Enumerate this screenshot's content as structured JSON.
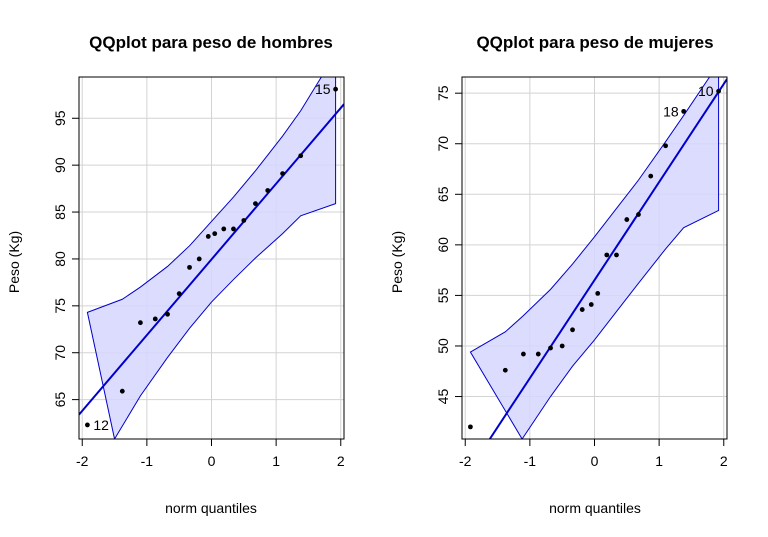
{
  "chart_data": [
    {
      "type": "scatter",
      "title": "QQplot para peso de hombres",
      "xlabel": "norm quantiles",
      "ylabel": "Peso (Kg)",
      "xlim": [
        -2.05,
        2.05
      ],
      "ylim": [
        60.8,
        99.4
      ],
      "xticks": [
        -2,
        -1,
        0,
        1,
        2
      ],
      "yticks": [
        65,
        70,
        75,
        80,
        85,
        90,
        95
      ],
      "xtick_labels": [
        "-2",
        "-1",
        "0",
        "1",
        "2"
      ],
      "ytick_labels": [
        "65",
        "70",
        "75",
        "80",
        "85",
        "90",
        "95"
      ],
      "grid": true,
      "colors": {
        "points": "#000000",
        "line": "#0000cd",
        "band_fill": "#d6d6ff",
        "band_edge": "#0000cd",
        "grid": "#d3d3d3"
      },
      "points": [
        {
          "x": -1.92,
          "y": 62.3
        },
        {
          "x": -1.38,
          "y": 65.9
        },
        {
          "x": -1.1,
          "y": 73.2
        },
        {
          "x": -0.87,
          "y": 73.6
        },
        {
          "x": -0.68,
          "y": 74.1
        },
        {
          "x": -0.5,
          "y": 76.3
        },
        {
          "x": -0.34,
          "y": 79.1
        },
        {
          "x": -0.19,
          "y": 80.0
        },
        {
          "x": -0.05,
          "y": 82.4
        },
        {
          "x": 0.05,
          "y": 82.7
        },
        {
          "x": 0.19,
          "y": 83.2
        },
        {
          "x": 0.34,
          "y": 83.2
        },
        {
          "x": 0.5,
          "y": 84.1
        },
        {
          "x": 0.68,
          "y": 85.9
        },
        {
          "x": 0.87,
          "y": 87.3
        },
        {
          "x": 1.1,
          "y": 89.1
        },
        {
          "x": 1.38,
          "y": 91.0
        },
        {
          "x": 1.92,
          "y": 98.1
        }
      ],
      "labeled_points": [
        {
          "label": "12",
          "x": -1.92,
          "y": 62.3,
          "side": "right"
        },
        {
          "label": "15",
          "x": 1.92,
          "y": 98.1,
          "side": "left"
        }
      ],
      "reference_line": [
        {
          "x": -2.05,
          "y": 63.4
        },
        {
          "x": 2.05,
          "y": 96.5
        }
      ],
      "band_upper": [
        {
          "x": -1.92,
          "y": 74.3
        },
        {
          "x": -1.38,
          "y": 75.7
        },
        {
          "x": -1.1,
          "y": 77.0
        },
        {
          "x": -0.68,
          "y": 79.2
        },
        {
          "x": -0.34,
          "y": 81.4
        },
        {
          "x": 0.0,
          "y": 84.0
        },
        {
          "x": 0.34,
          "y": 86.6
        },
        {
          "x": 0.68,
          "y": 89.4
        },
        {
          "x": 1.1,
          "y": 93.1
        },
        {
          "x": 1.38,
          "y": 95.8
        },
        {
          "x": 1.7,
          "y": 99.4
        }
      ],
      "band_lower": [
        {
          "x": -1.5,
          "y": 60.8
        },
        {
          "x": -1.1,
          "y": 65.4
        },
        {
          "x": -0.68,
          "y": 69.5
        },
        {
          "x": -0.34,
          "y": 72.6
        },
        {
          "x": 0.0,
          "y": 75.4
        },
        {
          "x": 0.34,
          "y": 77.8
        },
        {
          "x": 0.68,
          "y": 80.1
        },
        {
          "x": 1.1,
          "y": 82.7
        },
        {
          "x": 1.38,
          "y": 84.6
        },
        {
          "x": 1.92,
          "y": 85.9
        },
        {
          "x": 1.92,
          "y": 99.4
        }
      ]
    },
    {
      "type": "scatter",
      "title": "QQplot para peso de mujeres",
      "xlabel": "norm quantiles",
      "ylabel": "Peso (Kg)",
      "xlim": [
        -2.05,
        2.05
      ],
      "ylim": [
        40.8,
        76.6
      ],
      "xticks": [
        -2,
        -1,
        0,
        1,
        2
      ],
      "yticks": [
        45,
        50,
        55,
        60,
        65,
        70,
        75
      ],
      "xtick_labels": [
        "-2",
        "-1",
        "0",
        "1",
        "2"
      ],
      "ytick_labels": [
        "45",
        "50",
        "55",
        "60",
        "65",
        "70",
        "75"
      ],
      "grid": true,
      "colors": {
        "points": "#000000",
        "line": "#0000cd",
        "band_fill": "#d6d6ff",
        "band_edge": "#0000cd",
        "grid": "#d3d3d3"
      },
      "points": [
        {
          "x": -1.92,
          "y": 42.0
        },
        {
          "x": -1.38,
          "y": 47.6
        },
        {
          "x": -1.1,
          "y": 49.2
        },
        {
          "x": -0.87,
          "y": 49.2
        },
        {
          "x": -0.68,
          "y": 49.8
        },
        {
          "x": -0.5,
          "y": 50.0
        },
        {
          "x": -0.34,
          "y": 51.6
        },
        {
          "x": -0.19,
          "y": 53.6
        },
        {
          "x": -0.05,
          "y": 54.1
        },
        {
          "x": 0.05,
          "y": 55.2
        },
        {
          "x": 0.19,
          "y": 59.0
        },
        {
          "x": 0.34,
          "y": 59.0
        },
        {
          "x": 0.5,
          "y": 62.5
        },
        {
          "x": 0.68,
          "y": 63.0
        },
        {
          "x": 0.87,
          "y": 66.8
        },
        {
          "x": 1.1,
          "y": 69.8
        },
        {
          "x": 1.38,
          "y": 73.2
        },
        {
          "x": 1.92,
          "y": 75.2
        }
      ],
      "labeled_points": [
        {
          "label": "18",
          "x": 1.38,
          "y": 73.2,
          "side": "left"
        },
        {
          "label": "10",
          "x": 1.92,
          "y": 75.2,
          "side": "left"
        }
      ],
      "reference_line": [
        {
          "x": -1.62,
          "y": 40.8
        },
        {
          "x": 2.05,
          "y": 76.4
        }
      ],
      "band_upper": [
        {
          "x": -1.92,
          "y": 49.4
        },
        {
          "x": -1.38,
          "y": 51.4
        },
        {
          "x": -1.1,
          "y": 53.0
        },
        {
          "x": -0.68,
          "y": 55.6
        },
        {
          "x": -0.34,
          "y": 58.1
        },
        {
          "x": 0.0,
          "y": 60.8
        },
        {
          "x": 0.34,
          "y": 63.6
        },
        {
          "x": 0.68,
          "y": 66.4
        },
        {
          "x": 1.1,
          "y": 70.2
        },
        {
          "x": 1.38,
          "y": 72.8
        },
        {
          "x": 1.78,
          "y": 76.6
        }
      ],
      "band_lower": [
        {
          "x": -1.12,
          "y": 40.8
        },
        {
          "x": -0.68,
          "y": 45.0
        },
        {
          "x": -0.34,
          "y": 48.0
        },
        {
          "x": 0.0,
          "y": 50.6
        },
        {
          "x": 0.34,
          "y": 53.4
        },
        {
          "x": 0.68,
          "y": 56.2
        },
        {
          "x": 1.1,
          "y": 59.6
        },
        {
          "x": 1.38,
          "y": 61.7
        },
        {
          "x": 1.92,
          "y": 63.4
        },
        {
          "x": 1.92,
          "y": 76.6
        }
      ]
    }
  ]
}
